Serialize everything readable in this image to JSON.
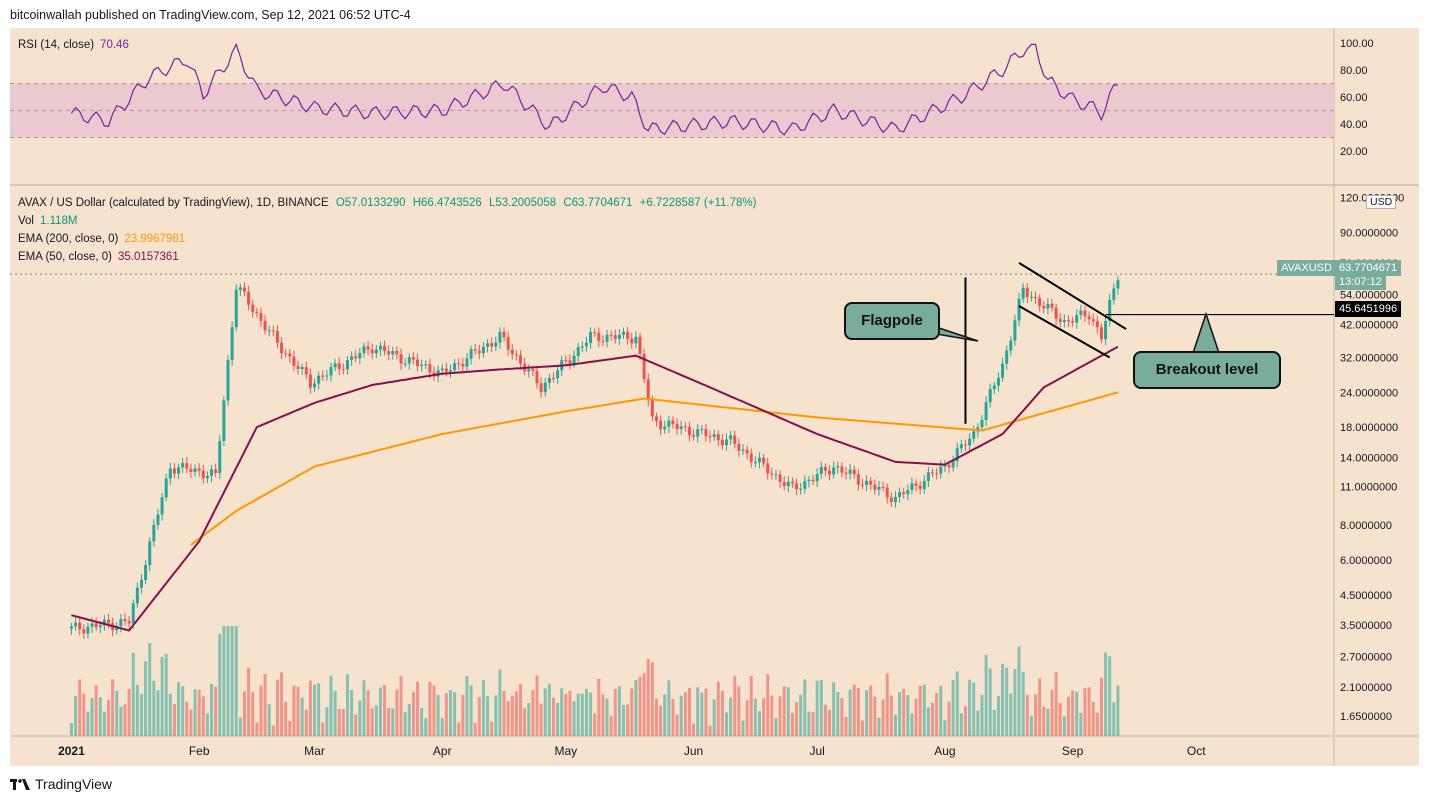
{
  "header": {
    "published": "bitcoinwallah published on TradingView.com, Sep 12, 2021 06:52 UTC-4"
  },
  "footer": {
    "brand": "TradingView"
  },
  "rsi_pane": {
    "label": "RSI (14, close)",
    "value": "70.46",
    "color": "#7b1fa2",
    "ticks": [
      "100.00",
      "80.00",
      "60.00",
      "40.00",
      "20.00"
    ],
    "band": [
      30,
      70
    ]
  },
  "price_pane": {
    "symbol_line": "AVAX / US Dollar (calculated by TradingView), 1D, BINANCE",
    "ohlc": {
      "o": "O57.0133290",
      "h": "H66.4743526",
      "l": "L53.2005058",
      "c": "C63.7704671",
      "change": "+6.7228587 (+11.78%)"
    },
    "vol": {
      "label": "Vol",
      "value": "1.118M"
    },
    "ema200": {
      "label": "EMA (200, close, 0)",
      "value": "23.9967981",
      "color": "#ff9800"
    },
    "ema50": {
      "label": "EMA (50, close, 0)",
      "value": "35.0157361",
      "color": "#880e4f"
    },
    "currency": "USD",
    "symbol_tag": "AVAXUSD",
    "price_tag": "63.7704671",
    "countdown": "13:07:12",
    "breakout_price": "45.6451996",
    "ticks": [
      "120.0000000",
      "90.0000000",
      "70.0000000",
      "54.0000000",
      "42.0000000",
      "32.0000000",
      "24.0000000",
      "18.0000000",
      "14.0000000",
      "11.0000000",
      "8.0000000",
      "6.0000000",
      "4.5000000",
      "3.5000000",
      "2.7000000",
      "2.1000000",
      "1.6500000"
    ],
    "annotations": {
      "flagpole": "Flagpole",
      "breakout": "Breakout level"
    }
  },
  "x_axis": {
    "labels": [
      "2021",
      "Feb",
      "Mar",
      "Apr",
      "May",
      "Jun",
      "Jul",
      "Aug",
      "Sep",
      "Oct"
    ]
  },
  "chart_data": {
    "type": "candlestick",
    "scale": "log",
    "ylim": [
      1.4,
      130
    ],
    "up_color": "#26a69a",
    "down_color": "#ef5350",
    "price_anchors": [
      [
        "2021-01-01",
        3.4
      ],
      [
        "2021-01-15",
        3.6
      ],
      [
        "2021-01-25",
        13
      ],
      [
        "2021-02-01",
        12.5
      ],
      [
        "2021-02-05",
        12
      ],
      [
        "2021-02-10",
        58
      ],
      [
        "2021-02-20",
        36
      ],
      [
        "2021-02-28",
        26
      ],
      [
        "2021-03-15",
        35
      ],
      [
        "2021-04-01",
        28
      ],
      [
        "2021-04-15",
        38
      ],
      [
        "2021-04-25",
        25
      ],
      [
        "2021-05-07",
        38
      ],
      [
        "2021-05-18",
        38
      ],
      [
        "2021-05-22",
        19
      ],
      [
        "2021-06-10",
        16
      ],
      [
        "2021-06-25",
        10.8
      ],
      [
        "2021-07-05",
        13
      ],
      [
        "2021-07-20",
        10
      ],
      [
        "2021-08-01",
        13
      ],
      [
        "2021-08-08",
        17
      ],
      [
        "2021-08-15",
        30
      ],
      [
        "2021-08-20",
        56
      ],
      [
        "2021-08-30",
        43
      ],
      [
        "2021-09-05",
        46
      ],
      [
        "2021-09-08",
        38
      ],
      [
        "2021-09-12",
        63.77
      ]
    ],
    "ema200_anchors": [
      [
        "2021-01-30",
        6.8
      ],
      [
        "2021-02-10",
        9
      ],
      [
        "2021-03-01",
        13
      ],
      [
        "2021-04-01",
        17
      ],
      [
        "2021-05-01",
        20.5
      ],
      [
        "2021-05-20",
        22.8
      ],
      [
        "2021-07-01",
        19.5
      ],
      [
        "2021-08-10",
        17.5
      ],
      [
        "2021-09-12",
        24
      ]
    ],
    "ema50_anchors": [
      [
        "2021-01-01",
        3.8
      ],
      [
        "2021-01-15",
        3.35
      ],
      [
        "2021-02-01",
        7
      ],
      [
        "2021-02-15",
        18
      ],
      [
        "2021-03-01",
        22
      ],
      [
        "2021-03-15",
        25.5
      ],
      [
        "2021-04-01",
        28
      ],
      [
        "2021-04-15",
        29
      ],
      [
        "2021-05-01",
        30
      ],
      [
        "2021-05-18",
        32.5
      ],
      [
        "2021-06-05",
        25
      ],
      [
        "2021-07-01",
        17
      ],
      [
        "2021-07-20",
        13.5
      ],
      [
        "2021-08-01",
        13.2
      ],
      [
        "2021-08-15",
        17
      ],
      [
        "2021-08-25",
        25
      ],
      [
        "2021-09-12",
        35
      ]
    ],
    "rsi_anchors": [
      [
        "2021-01-01",
        48
      ],
      [
        "2021-01-10",
        42
      ],
      [
        "2021-01-20",
        75
      ],
      [
        "2021-01-29",
        88
      ],
      [
        "2021-02-02",
        62
      ],
      [
        "2021-02-10",
        95
      ],
      [
        "2021-02-15",
        65
      ],
      [
        "2021-03-01",
        52
      ],
      [
        "2021-03-15",
        48
      ],
      [
        "2021-04-01",
        50
      ],
      [
        "2021-04-16",
        70
      ],
      [
        "2021-04-27",
        38
      ],
      [
        "2021-05-10",
        68
      ],
      [
        "2021-05-17",
        60
      ],
      [
        "2021-05-21",
        36
      ],
      [
        "2021-06-10",
        42
      ],
      [
        "2021-06-25",
        36
      ],
      [
        "2021-07-05",
        50
      ],
      [
        "2021-07-20",
        36
      ],
      [
        "2021-08-05",
        60
      ],
      [
        "2021-08-15",
        80
      ],
      [
        "2021-08-20",
        95
      ],
      [
        "2021-08-23",
        97
      ],
      [
        "2021-08-26",
        72
      ],
      [
        "2021-09-01",
        58
      ],
      [
        "2021-09-06",
        52
      ],
      [
        "2021-09-08",
        48
      ],
      [
        "2021-09-12",
        70.46
      ]
    ],
    "breakout_level": 45.6451996,
    "flag_lines": [
      [
        [
          "2021-08-19",
          70
        ],
        [
          "2021-09-14",
          40.5
        ]
      ],
      [
        [
          "2021-08-19",
          49
        ],
        [
          "2021-09-10",
          32
        ]
      ]
    ],
    "flagpole": [
      [
        "2021-08-06",
        18.5
      ],
      [
        "2021-08-06",
        62
      ]
    ]
  }
}
